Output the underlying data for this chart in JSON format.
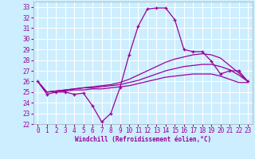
{
  "xlabel": "Windchill (Refroidissement éolien,°C)",
  "background_color": "#cceeff",
  "grid_color": "#ffffff",
  "line_color": "#990099",
  "xlim": [
    -0.5,
    23.5
  ],
  "ylim": [
    22,
    33.5
  ],
  "yticks": [
    22,
    23,
    24,
    25,
    26,
    27,
    28,
    29,
    30,
    31,
    32,
    33
  ],
  "xticks": [
    0,
    1,
    2,
    3,
    4,
    5,
    6,
    7,
    8,
    9,
    10,
    11,
    12,
    13,
    14,
    15,
    16,
    17,
    18,
    19,
    20,
    21,
    22,
    23
  ],
  "hours": [
    0,
    1,
    2,
    3,
    4,
    5,
    6,
    7,
    8,
    9,
    10,
    11,
    12,
    13,
    14,
    15,
    16,
    17,
    18,
    19,
    20,
    21,
    22,
    23
  ],
  "temperature": [
    26.0,
    24.8,
    25.0,
    25.0,
    24.8,
    24.9,
    23.7,
    22.2,
    23.0,
    25.4,
    28.5,
    31.2,
    32.8,
    32.9,
    32.9,
    31.8,
    29.0,
    28.8,
    28.8,
    27.9,
    26.7,
    27.0,
    27.0,
    26.0
  ],
  "smooth1": [
    26.0,
    25.0,
    25.1,
    25.2,
    25.3,
    25.4,
    25.5,
    25.6,
    25.7,
    25.9,
    26.2,
    26.6,
    27.0,
    27.4,
    27.8,
    28.1,
    28.3,
    28.5,
    28.6,
    28.5,
    28.2,
    27.5,
    26.8,
    26.0
  ],
  "smooth2": [
    26.0,
    25.0,
    25.1,
    25.2,
    25.3,
    25.4,
    25.4,
    25.5,
    25.6,
    25.7,
    25.9,
    26.1,
    26.4,
    26.7,
    27.0,
    27.2,
    27.4,
    27.5,
    27.6,
    27.6,
    27.4,
    27.1,
    26.6,
    26.0
  ],
  "smooth3": [
    26.0,
    25.0,
    25.1,
    25.1,
    25.2,
    25.2,
    25.3,
    25.3,
    25.4,
    25.5,
    25.6,
    25.8,
    26.0,
    26.2,
    26.4,
    26.5,
    26.6,
    26.7,
    26.7,
    26.7,
    26.5,
    26.2,
    25.9,
    25.9
  ]
}
